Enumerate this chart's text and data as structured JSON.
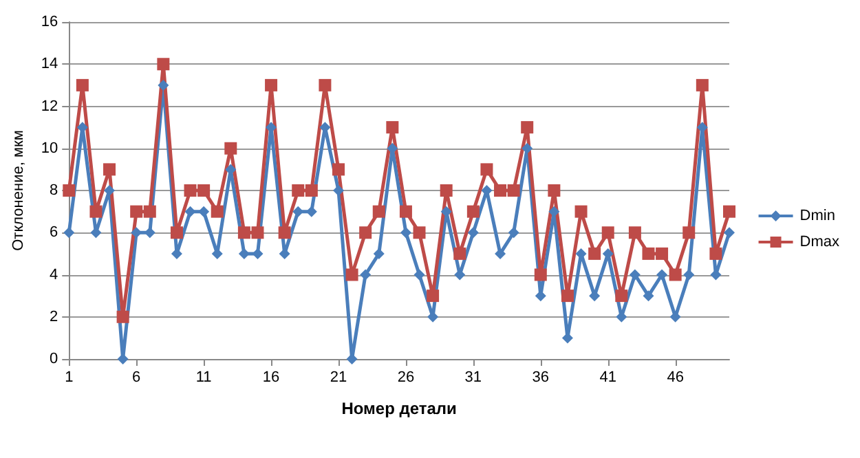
{
  "chart_data": {
    "type": "line",
    "xlabel": "Номер детали",
    "ylabel": "Отклонение, мкм",
    "categories": [
      "1",
      null,
      null,
      null,
      null,
      "6",
      null,
      null,
      null,
      null,
      "11",
      null,
      null,
      null,
      null,
      "16",
      null,
      null,
      null,
      null,
      "21",
      null,
      null,
      null,
      null,
      "26",
      null,
      null,
      null,
      null,
      "31",
      null,
      null,
      null,
      null,
      "36",
      null,
      null,
      null,
      null,
      "41",
      null,
      null,
      null,
      null,
      "46",
      null,
      null,
      null,
      null
    ],
    "series": [
      {
        "name": "Dmin",
        "color": "#4a7ebb",
        "marker": "diamond",
        "values": [
          6,
          11,
          6,
          8,
          0,
          6,
          6,
          13,
          5,
          7,
          7,
          5,
          9,
          5,
          5,
          11,
          5,
          7,
          7,
          11,
          8,
          0,
          4,
          5,
          10,
          6,
          4,
          2,
          7,
          4,
          6,
          8,
          5,
          6,
          10,
          3,
          7,
          1,
          5,
          3,
          5,
          2,
          4,
          3,
          4,
          2,
          4,
          11,
          4,
          6
        ]
      },
      {
        "name": "Dmax",
        "color": "#be4b48",
        "marker": "square",
        "values": [
          8,
          13,
          7,
          9,
          2,
          7,
          7,
          14,
          6,
          8,
          8,
          7,
          10,
          6,
          6,
          13,
          6,
          8,
          8,
          13,
          9,
          4,
          6,
          7,
          11,
          7,
          6,
          3,
          8,
          5,
          7,
          9,
          8,
          8,
          11,
          4,
          8,
          3,
          7,
          5,
          6,
          3,
          6,
          5,
          5,
          4,
          6,
          13,
          5,
          7
        ]
      }
    ],
    "ylim": [
      0,
      16
    ],
    "yticks": [
      0,
      2,
      4,
      6,
      8,
      10,
      12,
      14,
      16
    ],
    "grid": "y",
    "legend": "right"
  }
}
